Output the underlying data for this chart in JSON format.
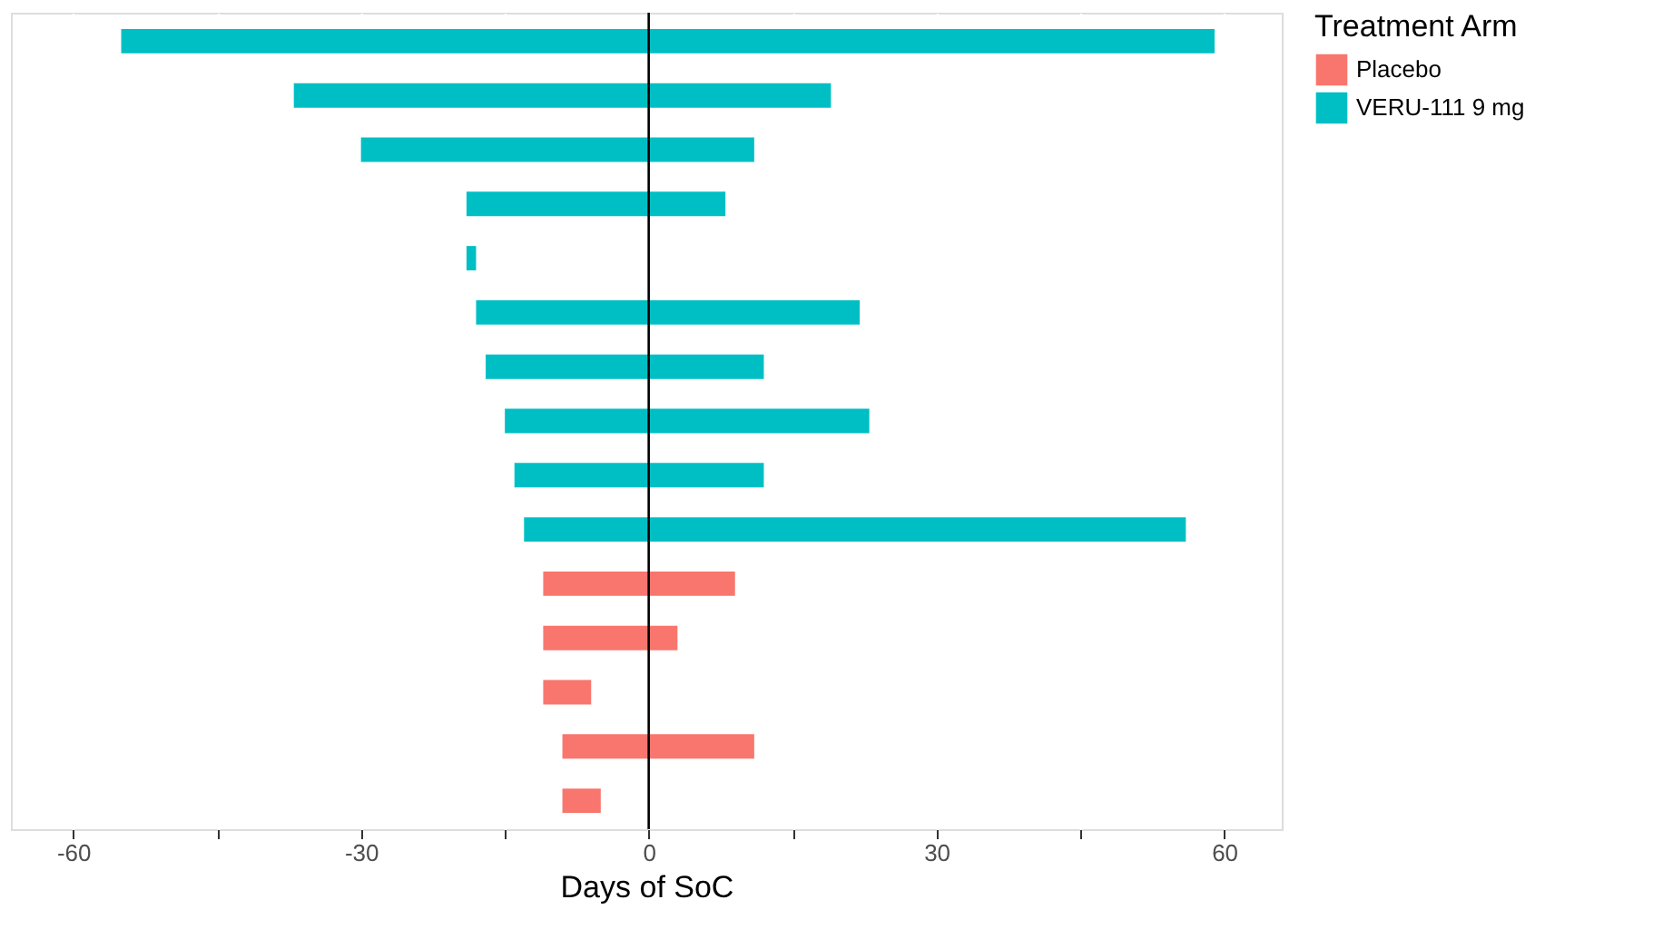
{
  "chart_data": {
    "type": "bar",
    "orientation": "horizontal",
    "xlabel": "Days of SoC",
    "legend_title": "Treatment Arm",
    "legend": "right",
    "categories": [
      null,
      null,
      null,
      null,
      null,
      null,
      null,
      null,
      null,
      null,
      null,
      null,
      null,
      null,
      null
    ],
    "series": [
      {
        "name": "Placebo",
        "color": "#f8766d",
        "base": [
          null,
          null,
          null,
          null,
          null,
          null,
          null,
          null,
          null,
          null,
          -11,
          -11,
          -11,
          -9,
          -9
        ],
        "values": [
          null,
          null,
          null,
          null,
          null,
          null,
          null,
          null,
          null,
          null,
          20,
          14,
          5,
          20,
          4
        ]
      },
      {
        "name": "VERU-111 9 mg",
        "color": "#00bfc4",
        "base": [
          -55,
          -37,
          -30,
          -19,
          -19,
          -18,
          -17,
          -15,
          -14,
          -13,
          null,
          null,
          null,
          null,
          null
        ],
        "values": [
          114,
          56,
          41,
          27,
          1,
          40,
          29,
          38,
          26,
          69,
          null,
          null,
          null,
          null,
          null
        ]
      }
    ],
    "xlim": [
      -66.5,
      66
    ],
    "xticks": [
      -60,
      {
        "value": -45,
        "label": null
      },
      -30,
      {
        "value": -15,
        "label": null
      },
      0,
      {
        "value": 15,
        "label": null
      },
      30,
      {
        "value": 45,
        "label": null
      },
      60
    ],
    "grid": "x",
    "tick_labels": "x",
    "ref_lines": [
      {
        "axis": "x",
        "value": 0,
        "color": "#000000"
      }
    ]
  }
}
